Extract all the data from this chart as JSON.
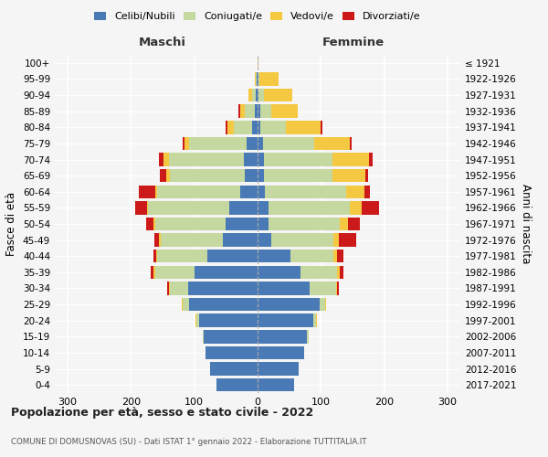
{
  "age_groups": [
    "100+",
    "95-99",
    "90-94",
    "85-89",
    "80-84",
    "75-79",
    "70-74",
    "65-69",
    "60-64",
    "55-59",
    "50-54",
    "45-49",
    "40-44",
    "35-39",
    "30-34",
    "25-29",
    "20-24",
    "15-19",
    "10-14",
    "5-9",
    "0-4"
  ],
  "birth_years": [
    "≤ 1921",
    "1922-1926",
    "1927-1931",
    "1932-1936",
    "1937-1941",
    "1942-1946",
    "1947-1951",
    "1952-1956",
    "1957-1961",
    "1962-1966",
    "1967-1971",
    "1972-1976",
    "1977-1981",
    "1982-1986",
    "1987-1991",
    "1992-1996",
    "1997-2001",
    "2002-2006",
    "2007-2011",
    "2012-2016",
    "2017-2021"
  ],
  "colors": {
    "celibe": "#4a7ab5",
    "coniugato": "#c5d8a0",
    "vedovo": "#f5c842",
    "divorziato": "#cc1a1a"
  },
  "maschi": {
    "celibe": [
      0,
      1,
      3,
      5,
      8,
      18,
      22,
      20,
      28,
      45,
      50,
      55,
      80,
      100,
      110,
      108,
      92,
      85,
      82,
      75,
      65
    ],
    "coniugato": [
      0,
      2,
      6,
      15,
      30,
      90,
      118,
      118,
      130,
      128,
      112,
      98,
      78,
      62,
      28,
      10,
      4,
      2,
      0,
      0,
      0
    ],
    "vedovo": [
      0,
      2,
      5,
      8,
      10,
      8,
      8,
      6,
      4,
      2,
      2,
      2,
      2,
      2,
      2,
      2,
      2,
      0,
      0,
      0,
      0
    ],
    "divorziato": [
      0,
      0,
      0,
      2,
      2,
      2,
      8,
      10,
      25,
      18,
      12,
      8,
      5,
      4,
      2,
      0,
      0,
      0,
      0,
      0,
      0
    ]
  },
  "femmine": {
    "nubile": [
      0,
      1,
      2,
      4,
      5,
      8,
      10,
      10,
      12,
      18,
      18,
      22,
      52,
      68,
      82,
      98,
      88,
      78,
      73,
      65,
      58
    ],
    "coniugata": [
      0,
      2,
      8,
      18,
      40,
      82,
      108,
      108,
      128,
      128,
      112,
      98,
      68,
      58,
      42,
      8,
      4,
      2,
      0,
      0,
      0
    ],
    "vedova": [
      1,
      30,
      45,
      42,
      55,
      56,
      58,
      52,
      28,
      18,
      13,
      8,
      5,
      4,
      2,
      2,
      2,
      0,
      0,
      0,
      0
    ],
    "divorziata": [
      0,
      0,
      0,
      0,
      2,
      2,
      5,
      5,
      10,
      28,
      18,
      28,
      10,
      5,
      2,
      0,
      0,
      0,
      0,
      0,
      0
    ]
  },
  "xlim": 320,
  "title": "Popolazione per età, sesso e stato civile - 2022",
  "subtitle": "COMUNE DI DOMUSNOVAS (SU) - Dati ISTAT 1° gennaio 2022 - Elaborazione TUTTITALIA.IT",
  "ylabel": "Fasce di età",
  "ylabel_right": "Anni di nascita",
  "legend_labels": [
    "Celibi/Nubili",
    "Coniugati/e",
    "Vedovi/e",
    "Divorziati/e"
  ],
  "background_color": "#f5f5f5",
  "bar_height": 0.82
}
